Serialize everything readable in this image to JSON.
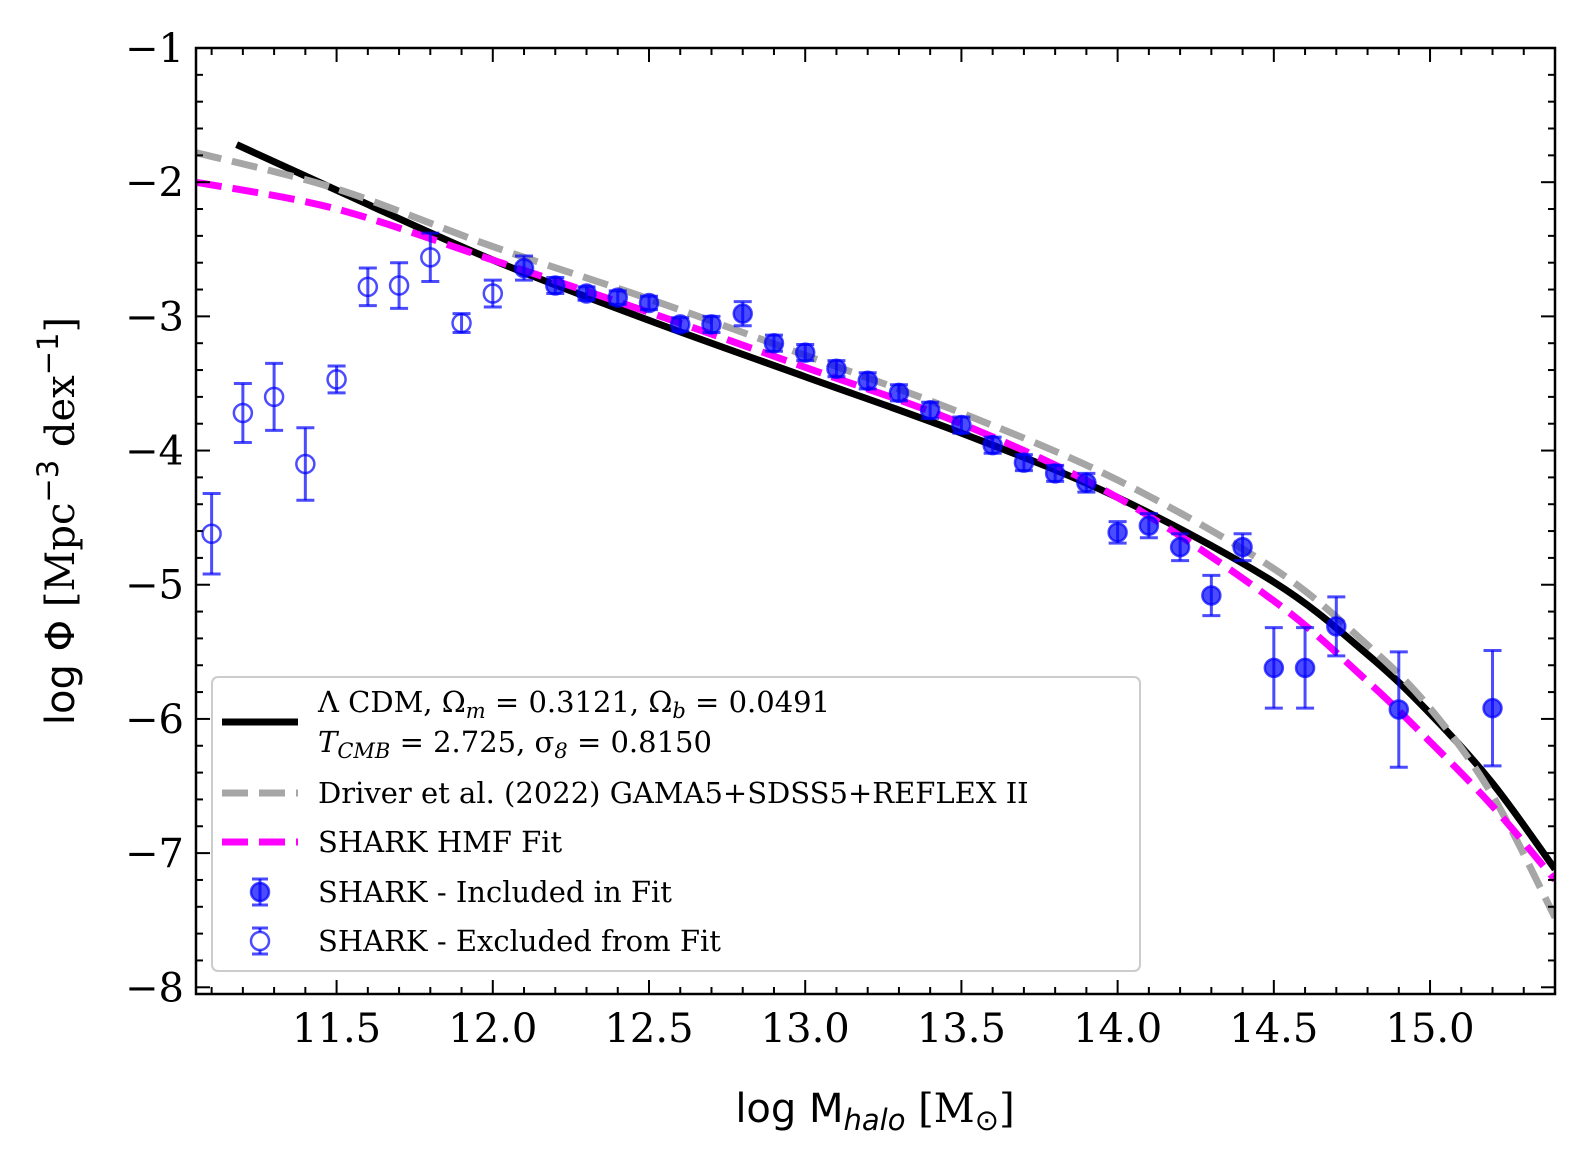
{
  "chart_data": {
    "type": "scatter",
    "xlabel": "log M_halo [M_sun]",
    "ylabel": "log Φ [Mpc^-3 dex^-1]",
    "xlim": [
      11.05,
      15.4
    ],
    "ylim": [
      -8.05,
      -1.0
    ],
    "x_ticks": [
      {
        "value": 11.5,
        "label": "11.5"
      },
      {
        "value": 12.0,
        "label": "12.0"
      },
      {
        "value": 12.5,
        "label": "12.5"
      },
      {
        "value": 13.0,
        "label": "13.0"
      },
      {
        "value": 13.5,
        "label": "13.5"
      },
      {
        "value": 14.0,
        "label": "14.0"
      },
      {
        "value": 14.5,
        "label": "14.5"
      },
      {
        "value": 15.0,
        "label": "15.0"
      }
    ],
    "y_ticks": [
      {
        "value": -1,
        "label": "−1"
      },
      {
        "value": -2,
        "label": "−2"
      },
      {
        "value": -3,
        "label": "−3"
      },
      {
        "value": -4,
        "label": "−4"
      },
      {
        "value": -5,
        "label": "−5"
      },
      {
        "value": -6,
        "label": "−6"
      },
      {
        "value": -7,
        "label": "−7"
      },
      {
        "value": -8,
        "label": "−8"
      }
    ],
    "series": [
      {
        "name": "LCDM",
        "kind": "line",
        "color": "#000000",
        "x": [
          11.18,
          11.5,
          12.0,
          12.5,
          13.0,
          13.5,
          14.0,
          14.5,
          14.8,
          15.0,
          15.2,
          15.4
        ],
        "y": [
          -1.72,
          -2.06,
          -2.58,
          -3.03,
          -3.45,
          -3.87,
          -4.35,
          -4.98,
          -5.52,
          -5.96,
          -6.48,
          -7.12
        ]
      },
      {
        "name": "Driver et al. (2022)",
        "kind": "dashed",
        "color": "#a6a6a6",
        "x": [
          11.05,
          11.5,
          12.0,
          12.5,
          13.0,
          13.5,
          14.0,
          14.5,
          14.8,
          15.0,
          15.2,
          15.4
        ],
        "y": [
          -1.78,
          -2.05,
          -2.48,
          -2.87,
          -3.29,
          -3.72,
          -4.22,
          -4.88,
          -5.45,
          -5.92,
          -6.57,
          -7.48
        ]
      },
      {
        "name": "SHARK HMF Fit",
        "kind": "dashed",
        "color": "#ff00ff",
        "x": [
          11.05,
          11.5,
          12.0,
          12.5,
          13.0,
          13.5,
          14.0,
          14.5,
          14.8,
          15.0,
          15.2,
          15.4
        ],
        "y": [
          -2.0,
          -2.2,
          -2.58,
          -2.97,
          -3.38,
          -3.8,
          -4.35,
          -5.12,
          -5.72,
          -6.17,
          -6.65,
          -7.2
        ]
      },
      {
        "name": "SHARK - Included in Fit",
        "kind": "points-filled",
        "color": "#0000ff",
        "x": [
          12.1,
          12.2,
          12.3,
          12.4,
          12.5,
          12.6,
          12.7,
          12.8,
          12.9,
          13.0,
          13.1,
          13.2,
          13.3,
          13.4,
          13.5,
          13.6,
          13.7,
          13.8,
          13.9,
          14.0,
          14.1,
          14.2,
          14.3,
          14.4,
          14.5,
          14.6,
          14.7,
          14.9,
          15.2
        ],
        "y": [
          -2.64,
          -2.77,
          -2.83,
          -2.86,
          -2.9,
          -3.06,
          -3.06,
          -2.98,
          -3.2,
          -3.27,
          -3.39,
          -3.48,
          -3.57,
          -3.7,
          -3.81,
          -3.96,
          -4.09,
          -4.17,
          -4.24,
          -4.61,
          -4.56,
          -4.72,
          -5.08,
          -4.72,
          -5.62,
          -5.62,
          -5.31,
          -5.93,
          -5.92
        ],
        "err": [
          0.09,
          0.06,
          0.05,
          0.05,
          0.05,
          0.05,
          0.06,
          0.09,
          0.06,
          0.06,
          0.06,
          0.06,
          0.06,
          0.06,
          0.06,
          0.06,
          0.06,
          0.06,
          0.07,
          0.08,
          0.09,
          0.1,
          0.15,
          0.1,
          0.3,
          0.3,
          0.22,
          0.43,
          0.43
        ]
      },
      {
        "name": "SHARK - Excluded from Fit",
        "kind": "points-open",
        "color": "#0000ff",
        "x": [
          11.1,
          11.2,
          11.3,
          11.4,
          11.5,
          11.6,
          11.7,
          11.8,
          11.9,
          12.0
        ],
        "y": [
          -4.62,
          -3.72,
          -3.6,
          -4.1,
          -3.47,
          -2.78,
          -2.77,
          -2.56,
          -3.05,
          -2.83
        ],
        "err": [
          0.3,
          0.22,
          0.25,
          0.27,
          0.1,
          0.14,
          0.17,
          0.18,
          0.07,
          0.1
        ]
      }
    ],
    "legend": {
      "location": "lower-left",
      "entries": [
        {
          "line1": "Λ CDM, Ω",
          "sub1": "m",
          "mid1": " = 0.3121, Ω",
          "sub2": "b",
          "end1": " = 0.0491",
          "line2a": "T",
          "line2sub": "CMB",
          "line2b": " = 2.725, σ",
          "line2sub2": "8",
          "line2c": " = 0.8150"
        },
        {
          "label": "Driver et al. (2022) GAMA5+SDSS5+REFLEX II"
        },
        {
          "label": "SHARK HMF Fit"
        },
        {
          "label": "SHARK - Included in Fit"
        },
        {
          "label": "SHARK - Excluded from Fit"
        }
      ]
    },
    "axis_label_parts": {
      "x_prefix": "log  M",
      "x_sub": "halo",
      "x_unit": " [M",
      "x_sun": "⊙",
      "x_close": "]",
      "y_prefix": "log  Φ ",
      "y_unit": "[Mpc",
      "y_sup1": "−3",
      "y_mid": " dex",
      "y_sup2": "−1",
      "y_close": "]"
    }
  }
}
